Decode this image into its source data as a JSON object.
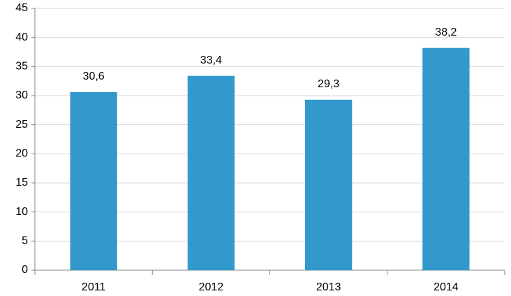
{
  "chart_data": {
    "type": "bar",
    "categories": [
      "2011",
      "2012",
      "2013",
      "2014"
    ],
    "values": [
      30.6,
      33.4,
      29.3,
      38.2
    ],
    "value_labels": [
      "30,6",
      "33,4",
      "29,3",
      "38,2"
    ],
    "color": "#3399cc",
    "ylim": [
      0,
      45
    ],
    "yticks": [
      0,
      5,
      10,
      15,
      20,
      25,
      30,
      35,
      40,
      45
    ],
    "grid": true
  }
}
